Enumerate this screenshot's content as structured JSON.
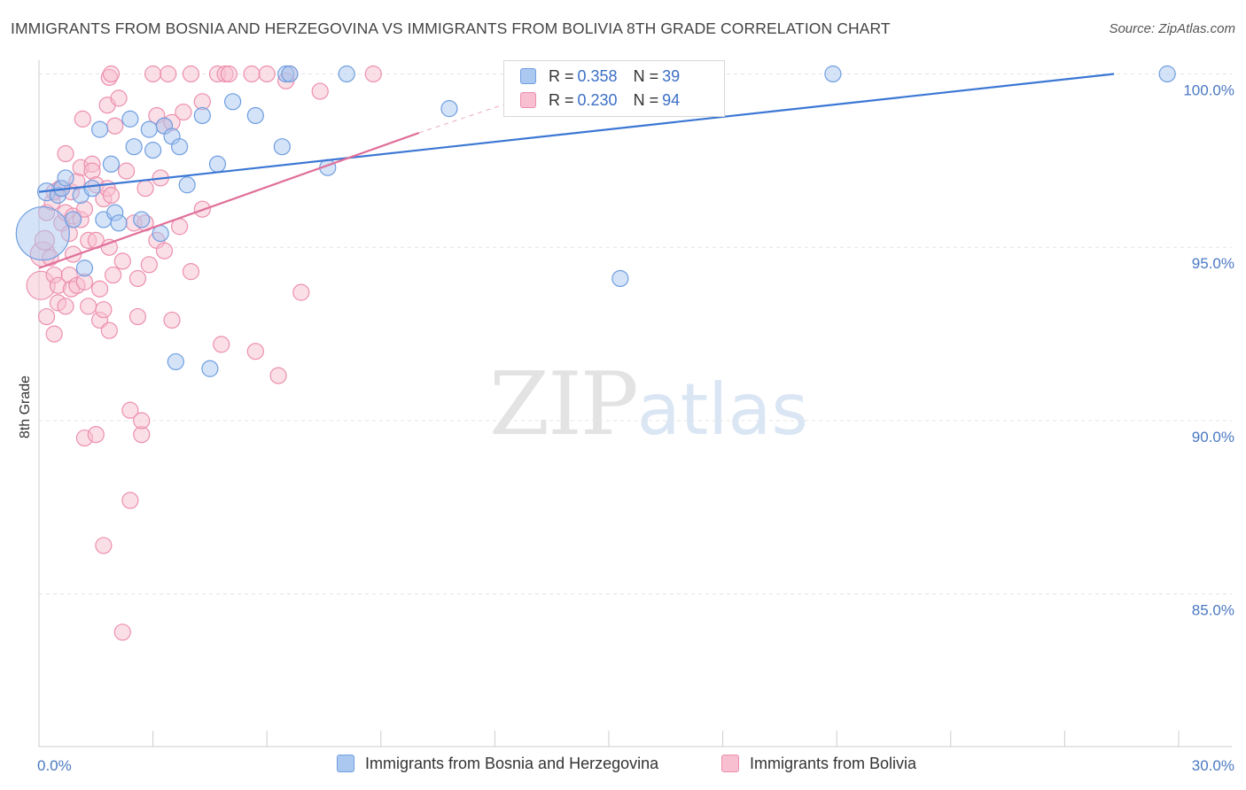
{
  "title": "IMMIGRANTS FROM BOSNIA AND HERZEGOVINA VS IMMIGRANTS FROM BOLIVIA 8TH GRADE CORRELATION CHART",
  "source": "Source: ZipAtlas.com",
  "watermark": {
    "zip": "ZIP",
    "atlas": "atlas"
  },
  "legend": {
    "series1": {
      "r_label": "R =",
      "r_value": "0.358",
      "n_label": "N =",
      "n_value": "39"
    },
    "series2": {
      "r_label": "R =",
      "r_value": "0.230",
      "n_label": "N =",
      "n_value": "94"
    }
  },
  "bottom_legend": {
    "series1": "Immigrants from Bosnia and Herzegovina",
    "series2": "Immigrants from Bolivia"
  },
  "colors": {
    "series1_fill": "#aac8f0",
    "series1_stroke": "#6f9ee0",
    "series1_line": "#3b77d4",
    "series2_fill": "#f7bfd0",
    "series2_stroke": "#ec8fae",
    "series2_line": "#e0709a",
    "tick_label": "#4a78c2",
    "grid": "#e4e4e4"
  },
  "chart_data": {
    "type": "scatter",
    "title": "IMMIGRANTS FROM BOSNIA AND HERZEGOVINA VS IMMIGRANTS FROM BOLIVIA 8TH GRADE CORRELATION CHART",
    "xlabel": "",
    "ylabel": "8th Grade",
    "xlim": [
      0,
      30
    ],
    "ylim": [
      80.6,
      100.6
    ],
    "x_tick_labels": [
      "0.0%",
      "30.0%"
    ],
    "y_ticks": [
      85,
      90,
      95,
      100
    ],
    "y_tick_labels": [
      "85.0%",
      "90.0%",
      "95.0%",
      "100.0%"
    ],
    "grid": true,
    "legend_position": "top-center",
    "series": [
      {
        "name": "Immigrants from Bosnia and Herzegovina",
        "trend": {
          "x0": 0,
          "y0": 96.6,
          "x1": 28.3,
          "y1": 100.0
        },
        "points": [
          [
            0.1,
            95.4,
            30
          ],
          [
            0.2,
            96.6,
            10
          ],
          [
            0.5,
            96.5,
            9
          ],
          [
            0.6,
            96.7,
            9
          ],
          [
            0.7,
            97.0,
            9
          ],
          [
            0.9,
            95.8,
            9
          ],
          [
            1.1,
            96.5,
            9
          ],
          [
            1.2,
            94.4,
            9
          ],
          [
            1.4,
            96.7,
            9
          ],
          [
            1.6,
            98.4,
            9
          ],
          [
            1.7,
            95.8,
            9
          ],
          [
            1.9,
            97.4,
            9
          ],
          [
            2.0,
            96.0,
            9
          ],
          [
            2.1,
            95.7,
            9
          ],
          [
            2.4,
            98.7,
            9
          ],
          [
            2.5,
            97.9,
            9
          ],
          [
            2.7,
            95.8,
            9
          ],
          [
            2.9,
            98.4,
            9
          ],
          [
            3.0,
            97.8,
            9
          ],
          [
            3.2,
            95.4,
            9
          ],
          [
            3.3,
            98.5,
            9
          ],
          [
            3.5,
            98.2,
            9
          ],
          [
            3.7,
            97.9,
            9
          ],
          [
            3.6,
            91.7,
            9
          ],
          [
            3.9,
            96.8,
            9
          ],
          [
            4.3,
            98.8,
            9
          ],
          [
            4.5,
            91.5,
            9
          ],
          [
            4.7,
            97.4,
            9
          ],
          [
            5.1,
            99.2,
            9
          ],
          [
            5.7,
            98.8,
            9
          ],
          [
            6.4,
            97.9,
            9
          ],
          [
            6.5,
            100.0,
            9
          ],
          [
            7.6,
            97.3,
            9
          ],
          [
            8.1,
            100.0,
            9
          ],
          [
            10.8,
            99.0,
            9
          ],
          [
            15.3,
            94.1,
            9
          ],
          [
            20.9,
            100.0,
            9
          ],
          [
            29.7,
            100.0,
            9
          ],
          [
            6.6,
            100.0,
            9
          ]
        ]
      },
      {
        "name": "Immigrants from Bolivia",
        "trend": {
          "x0": 0,
          "y0": 94.4,
          "x1": 10.0,
          "y1": 98.3
        },
        "trend_dash": {
          "x0": 10.0,
          "y0": 98.3,
          "x1": 13.0,
          "y1": 99.4
        },
        "points": [
          [
            0.05,
            93.9,
            16
          ],
          [
            0.1,
            94.8,
            14
          ],
          [
            0.15,
            95.2,
            11
          ],
          [
            0.2,
            96.0,
            9
          ],
          [
            0.2,
            93.0,
            9
          ],
          [
            0.3,
            94.7,
            9
          ],
          [
            0.35,
            96.3,
            9
          ],
          [
            0.4,
            96.6,
            9
          ],
          [
            0.4,
            94.2,
            9
          ],
          [
            0.4,
            92.5,
            9
          ],
          [
            0.5,
            93.4,
            9
          ],
          [
            0.5,
            93.9,
            9
          ],
          [
            0.55,
            96.7,
            9
          ],
          [
            0.6,
            95.7,
            9
          ],
          [
            0.7,
            96.0,
            9
          ],
          [
            0.7,
            93.3,
            9
          ],
          [
            0.7,
            97.7,
            9
          ],
          [
            0.8,
            95.4,
            9
          ],
          [
            0.8,
            94.2,
            9
          ],
          [
            0.85,
            96.6,
            9
          ],
          [
            0.85,
            93.8,
            9
          ],
          [
            0.9,
            95.9,
            9
          ],
          [
            0.9,
            94.8,
            9
          ],
          [
            1.0,
            93.9,
            9
          ],
          [
            1.0,
            96.9,
            9
          ],
          [
            1.1,
            97.3,
            9
          ],
          [
            1.1,
            95.8,
            9
          ],
          [
            1.15,
            98.7,
            9
          ],
          [
            1.2,
            96.1,
            9
          ],
          [
            1.2,
            94.0,
            9
          ],
          [
            1.2,
            89.5,
            9
          ],
          [
            1.3,
            95.2,
            9
          ],
          [
            1.3,
            93.3,
            9
          ],
          [
            1.4,
            97.4,
            9
          ],
          [
            1.4,
            97.2,
            9
          ],
          [
            1.5,
            96.8,
            9
          ],
          [
            1.5,
            95.2,
            9
          ],
          [
            1.5,
            89.6,
            9
          ],
          [
            1.6,
            93.8,
            9
          ],
          [
            1.6,
            92.9,
            9
          ],
          [
            1.7,
            93.2,
            9
          ],
          [
            1.7,
            96.4,
            9
          ],
          [
            1.7,
            86.4,
            9
          ],
          [
            1.8,
            99.1,
            9
          ],
          [
            1.8,
            96.7,
            9
          ],
          [
            1.85,
            95.0,
            9
          ],
          [
            1.85,
            92.6,
            9
          ],
          [
            1.85,
            99.9,
            9
          ],
          [
            1.9,
            100.0,
            9
          ],
          [
            1.9,
            96.5,
            9
          ],
          [
            1.95,
            94.2,
            9
          ],
          [
            2.0,
            98.5,
            9
          ],
          [
            2.1,
            99.3,
            9
          ],
          [
            2.2,
            94.6,
            9
          ],
          [
            2.2,
            83.9,
            9
          ],
          [
            2.3,
            97.2,
            9
          ],
          [
            2.4,
            87.7,
            9
          ],
          [
            2.4,
            90.3,
            9
          ],
          [
            2.5,
            95.7,
            9
          ],
          [
            2.6,
            94.1,
            9
          ],
          [
            2.6,
            93.0,
            9
          ],
          [
            2.7,
            89.6,
            9
          ],
          [
            2.7,
            90.0,
            9
          ],
          [
            2.8,
            96.7,
            9
          ],
          [
            2.8,
            95.7,
            9
          ],
          [
            2.9,
            94.5,
            9
          ],
          [
            3.0,
            100.0,
            9
          ],
          [
            3.1,
            95.2,
            9
          ],
          [
            3.1,
            98.8,
            9
          ],
          [
            3.2,
            97.0,
            9
          ],
          [
            3.3,
            94.9,
            9
          ],
          [
            3.3,
            98.5,
            9
          ],
          [
            3.4,
            100.0,
            9
          ],
          [
            3.5,
            92.9,
            9
          ],
          [
            3.5,
            98.6,
            9
          ],
          [
            3.7,
            95.6,
            9
          ],
          [
            3.8,
            98.9,
            9
          ],
          [
            4.0,
            100.0,
            9
          ],
          [
            4.0,
            94.3,
            9
          ],
          [
            4.3,
            96.1,
            9
          ],
          [
            4.3,
            99.2,
            9
          ],
          [
            4.7,
            100.0,
            9
          ],
          [
            4.8,
            92.2,
            9
          ],
          [
            4.9,
            100.0,
            9
          ],
          [
            5.0,
            100.0,
            9
          ],
          [
            5.6,
            100.0,
            9
          ],
          [
            5.7,
            92.0,
            9
          ],
          [
            6.0,
            100.0,
            9
          ],
          [
            6.3,
            91.3,
            9
          ],
          [
            6.6,
            100.0,
            9
          ],
          [
            6.5,
            99.8,
            9
          ],
          [
            6.9,
            93.7,
            9
          ],
          [
            7.4,
            99.5,
            9
          ],
          [
            8.8,
            100.0,
            9
          ]
        ]
      }
    ]
  }
}
